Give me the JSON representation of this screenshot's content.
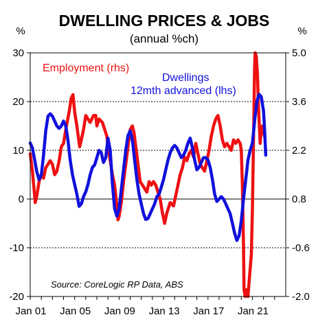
{
  "chart_data": {
    "type": "line",
    "title": "DWELLING PRICES & JOBS",
    "subtitle": "(annual %ch)",
    "left_unit": "%",
    "right_unit": "%",
    "x_tick_labels": [
      "Jan 01",
      "Jan 05",
      "Jan 09",
      "Jan 13",
      "Jan 17",
      "Jan 21"
    ],
    "x_range": [
      2001.0,
      2024.0
    ],
    "left_axis": {
      "range": [
        -20,
        30
      ],
      "ticks": [
        30,
        20,
        10,
        0,
        -10,
        -20
      ],
      "tick_labels": [
        "30",
        "20",
        "10",
        "0",
        "-10",
        "-20"
      ]
    },
    "right_axis": {
      "range": [
        -2.0,
        5.0
      ],
      "ticks": [
        5.0,
        3.6,
        2.2,
        0.8,
        -0.6,
        -2.0
      ],
      "tick_labels": [
        "5.0",
        "3.6",
        "2.2",
        "0.8",
        "-0.6",
        "-2.0"
      ]
    },
    "gridlines": true,
    "source": "Source: CoreLogic RP Data, ABS",
    "series": [
      {
        "name": "Employment (rhs)",
        "axis": "right",
        "color": "#ee1111",
        "points": [
          [
            2001.0,
            2.1
          ],
          [
            2001.2,
            1.6
          ],
          [
            2001.45,
            0.7
          ],
          [
            2001.6,
            0.9
          ],
          [
            2001.8,
            1.3
          ],
          [
            2002.0,
            1.5
          ],
          [
            2002.2,
            1.4
          ],
          [
            2002.4,
            1.7
          ],
          [
            2002.6,
            1.8
          ],
          [
            2002.8,
            1.9
          ],
          [
            2003.0,
            1.8
          ],
          [
            2003.2,
            1.5
          ],
          [
            2003.4,
            1.6
          ],
          [
            2003.6,
            1.9
          ],
          [
            2003.8,
            2.3
          ],
          [
            2004.0,
            2.4
          ],
          [
            2004.2,
            2.8
          ],
          [
            2004.5,
            3.3
          ],
          [
            2004.7,
            3.7
          ],
          [
            2004.85,
            3.8
          ],
          [
            2005.0,
            3.3
          ],
          [
            2005.2,
            2.9
          ],
          [
            2005.45,
            2.3
          ],
          [
            2005.6,
            2.5
          ],
          [
            2005.8,
            2.8
          ],
          [
            2006.0,
            3.2
          ],
          [
            2006.2,
            3.1
          ],
          [
            2006.4,
            3.0
          ],
          [
            2006.7,
            3.2
          ],
          [
            2006.9,
            3.2
          ],
          [
            2007.0,
            2.9
          ],
          [
            2007.2,
            3.1
          ],
          [
            2007.5,
            3.0
          ],
          [
            2007.7,
            2.8
          ],
          [
            2007.9,
            2.6
          ],
          [
            2008.0,
            2.3
          ],
          [
            2008.2,
            1.9
          ],
          [
            2008.4,
            1.5
          ],
          [
            2008.6,
            1.2
          ],
          [
            2008.8,
            0.6
          ],
          [
            2008.9,
            0.2
          ],
          [
            2009.0,
            0.3
          ],
          [
            2009.2,
            0.7
          ],
          [
            2009.4,
            1.3
          ],
          [
            2009.6,
            1.8
          ],
          [
            2009.8,
            2.3
          ],
          [
            2010.0,
            2.8
          ],
          [
            2010.2,
            2.9
          ],
          [
            2010.35,
            2.7
          ],
          [
            2010.5,
            2.3
          ],
          [
            2010.7,
            1.8
          ],
          [
            2010.9,
            1.3
          ],
          [
            2011.1,
            1.2
          ],
          [
            2011.3,
            1.1
          ],
          [
            2011.5,
            1.0
          ],
          [
            2011.7,
            1.3
          ],
          [
            2011.9,
            1.2
          ],
          [
            2012.1,
            1.3
          ],
          [
            2012.3,
            1.2
          ],
          [
            2012.5,
            1.0
          ],
          [
            2012.7,
            0.8
          ],
          [
            2012.9,
            0.4
          ],
          [
            2013.1,
            0.1
          ],
          [
            2013.3,
            0.4
          ],
          [
            2013.6,
            0.7
          ],
          [
            2013.9,
            0.6
          ],
          [
            2014.1,
            0.9
          ],
          [
            2014.3,
            1.2
          ],
          [
            2014.5,
            1.5
          ],
          [
            2014.7,
            1.7
          ],
          [
            2014.9,
            2.0
          ],
          [
            2015.1,
            1.9
          ],
          [
            2015.3,
            2.1
          ],
          [
            2015.5,
            2.2
          ],
          [
            2015.7,
            2.0
          ],
          [
            2015.9,
            2.4
          ],
          [
            2016.1,
            2.1
          ],
          [
            2016.3,
            1.8
          ],
          [
            2016.5,
            1.7
          ],
          [
            2016.7,
            1.6
          ],
          [
            2016.9,
            1.9
          ],
          [
            2017.1,
            2.2
          ],
          [
            2017.3,
            2.6
          ],
          [
            2017.5,
            2.9
          ],
          [
            2017.7,
            3.1
          ],
          [
            2017.9,
            3.2
          ],
          [
            2018.1,
            2.9
          ],
          [
            2018.3,
            2.5
          ],
          [
            2018.5,
            2.3
          ],
          [
            2018.7,
            2.4
          ],
          [
            2018.9,
            2.3
          ],
          [
            2019.1,
            2.2
          ],
          [
            2019.3,
            2.5
          ],
          [
            2019.5,
            2.4
          ],
          [
            2019.7,
            2.5
          ],
          [
            2019.9,
            2.4
          ],
          [
            2020.0,
            2.2
          ],
          [
            2020.1,
            1.2
          ],
          [
            2020.2,
            -0.5
          ],
          [
            2020.25,
            -1.8
          ],
          [
            2020.35,
            -2.0
          ],
          [
            2020.5,
            -1.8
          ],
          [
            2020.6,
            -2.0
          ],
          [
            2020.75,
            -1.4
          ],
          [
            2020.9,
            -0.8
          ],
          [
            2021.0,
            0.5
          ],
          [
            2021.1,
            2.5
          ],
          [
            2021.2,
            4.6
          ],
          [
            2021.25,
            5.0
          ],
          [
            2021.35,
            4.9
          ],
          [
            2021.45,
            4.4
          ],
          [
            2021.55,
            3.4
          ],
          [
            2021.7,
            2.4
          ],
          [
            2021.8,
            2.8
          ],
          [
            2021.9,
            2.9
          ],
          [
            2022.0,
            2.7
          ],
          [
            2022.1,
            2.6
          ]
        ]
      },
      {
        "name": "Dwellings 12mth advanced (lhs)",
        "axis": "left",
        "color": "#1111dd",
        "points": [
          [
            2001.0,
            11.5
          ],
          [
            2001.2,
            10.5
          ],
          [
            2001.4,
            8.0
          ],
          [
            2001.6,
            5.5
          ],
          [
            2001.8,
            4.0
          ],
          [
            2002.0,
            5.0
          ],
          [
            2002.2,
            9.0
          ],
          [
            2002.4,
            14.0
          ],
          [
            2002.6,
            17.0
          ],
          [
            2002.8,
            17.5
          ],
          [
            2003.0,
            17.0
          ],
          [
            2003.2,
            16.0
          ],
          [
            2003.4,
            15.0
          ],
          [
            2003.6,
            14.5
          ],
          [
            2003.8,
            15.0
          ],
          [
            2004.0,
            16.0
          ],
          [
            2004.2,
            15.0
          ],
          [
            2004.4,
            12.0
          ],
          [
            2004.6,
            8.0
          ],
          [
            2004.8,
            5.0
          ],
          [
            2005.0,
            3.0
          ],
          [
            2005.2,
            1.0
          ],
          [
            2005.4,
            -1.5
          ],
          [
            2005.6,
            -1.0
          ],
          [
            2005.8,
            0.5
          ],
          [
            2006.0,
            1.5
          ],
          [
            2006.2,
            3.0
          ],
          [
            2006.4,
            5.0
          ],
          [
            2006.6,
            6.5
          ],
          [
            2006.8,
            7.0
          ],
          [
            2007.0,
            8.5
          ],
          [
            2007.2,
            10.0
          ],
          [
            2007.4,
            9.5
          ],
          [
            2007.6,
            7.5
          ],
          [
            2007.8,
            8.5
          ],
          [
            2008.0,
            12.5
          ],
          [
            2008.2,
            10.0
          ],
          [
            2008.4,
            3.0
          ],
          [
            2008.6,
            -2.0
          ],
          [
            2008.8,
            -3.5
          ],
          [
            2009.0,
            -2.0
          ],
          [
            2009.2,
            2.0
          ],
          [
            2009.4,
            6.0
          ],
          [
            2009.6,
            10.0
          ],
          [
            2009.8,
            13.0
          ],
          [
            2010.0,
            14.0
          ],
          [
            2010.2,
            12.0
          ],
          [
            2010.4,
            8.0
          ],
          [
            2010.6,
            4.0
          ],
          [
            2010.8,
            1.0
          ],
          [
            2011.0,
            -1.0
          ],
          [
            2011.2,
            -3.0
          ],
          [
            2011.4,
            -4.2
          ],
          [
            2011.6,
            -4.0
          ],
          [
            2011.8,
            -3.0
          ],
          [
            2012.0,
            -2.0
          ],
          [
            2012.2,
            -1.0
          ],
          [
            2012.4,
            0.5
          ],
          [
            2012.6,
            1.0
          ],
          [
            2012.8,
            2.5
          ],
          [
            2013.0,
            4.0
          ],
          [
            2013.2,
            6.0
          ],
          [
            2013.4,
            8.0
          ],
          [
            2013.6,
            9.5
          ],
          [
            2013.8,
            10.5
          ],
          [
            2014.0,
            11.0
          ],
          [
            2014.2,
            10.5
          ],
          [
            2014.4,
            9.5
          ],
          [
            2014.6,
            8.5
          ],
          [
            2014.8,
            9.0
          ],
          [
            2015.0,
            10.0
          ],
          [
            2015.2,
            11.5
          ],
          [
            2015.4,
            12.5
          ],
          [
            2015.6,
            10.5
          ],
          [
            2015.8,
            8.0
          ],
          [
            2016.0,
            6.0
          ],
          [
            2016.2,
            6.5
          ],
          [
            2016.4,
            7.5
          ],
          [
            2016.6,
            8.5
          ],
          [
            2016.8,
            8.5
          ],
          [
            2017.0,
            8.0
          ],
          [
            2017.2,
            6.5
          ],
          [
            2017.4,
            4.0
          ],
          [
            2017.6,
            1.0
          ],
          [
            2017.8,
            -0.5
          ],
          [
            2018.0,
            0.0
          ],
          [
            2018.2,
            0.5
          ],
          [
            2018.4,
            0.0
          ],
          [
            2018.6,
            -1.0
          ],
          [
            2018.8,
            -2.0
          ],
          [
            2019.0,
            -3.0
          ],
          [
            2019.2,
            -5.0
          ],
          [
            2019.4,
            -7.0
          ],
          [
            2019.6,
            -8.5
          ],
          [
            2019.8,
            -7.5
          ],
          [
            2020.0,
            -4.5
          ],
          [
            2020.2,
            0.0
          ],
          [
            2020.4,
            4.0
          ],
          [
            2020.6,
            8.0
          ],
          [
            2020.8,
            10.0
          ],
          [
            2021.0,
            11.5
          ],
          [
            2021.2,
            16.0
          ],
          [
            2021.4,
            20.0
          ],
          [
            2021.6,
            21.5
          ],
          [
            2021.8,
            21.0
          ],
          [
            2022.0,
            18.0
          ],
          [
            2022.1,
            14.0
          ],
          [
            2022.2,
            9.0
          ]
        ]
      }
    ],
    "annotations": [
      {
        "text": "Employment (rhs)",
        "color": "#ee1111"
      },
      {
        "text": "Dwellings",
        "color": "#1111dd"
      },
      {
        "text": "12mth advanced (lhs)",
        "color": "#1111dd"
      }
    ]
  }
}
